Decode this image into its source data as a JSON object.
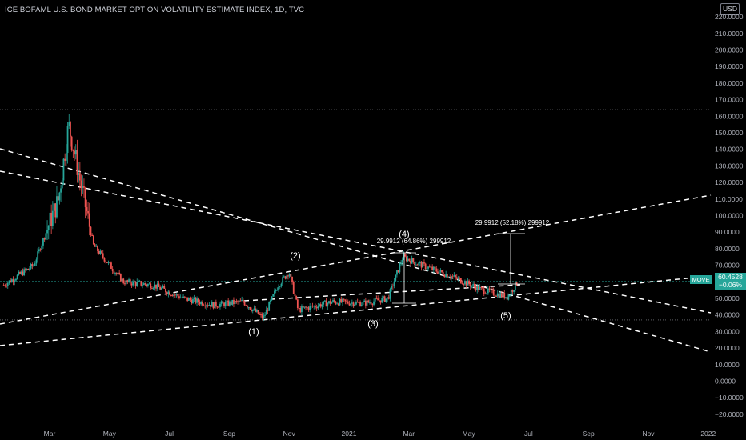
{
  "title": "ICE BOFAML U.S. BOND MARKET OPTION VOLATILITY ESTIMATE INDEX, 1D, TVC",
  "currency": "USD",
  "symbol_tag": "MOVE",
  "last_price": "60.4528",
  "change_pct": "−0.06%",
  "colors": {
    "up": "#26a69a",
    "down": "#ef5350",
    "background": "#000000",
    "tag": "#26a69a"
  },
  "chart_data": {
    "type": "candlestick",
    "title": "ICE BOFAML U.S. BOND MARKET OPTION VOLATILITY ESTIMATE INDEX, 1D, TVC",
    "y_axis_side": "right",
    "ylim": [
      -25,
      225
    ],
    "y_ticks": [
      "220.0000",
      "210.0000",
      "200.0000",
      "190.0000",
      "180.0000",
      "170.0000",
      "160.0000",
      "150.0000",
      "140.0000",
      "130.0000",
      "120.0000",
      "110.0000",
      "100.0000",
      "90.0000",
      "80.0000",
      "70.0000",
      "60.0000",
      "50.0000",
      "40.0000",
      "30.0000",
      "20.0000",
      "10.0000",
      "0.0000",
      "−10.0000",
      "−20.0000"
    ],
    "x_ticks": [
      "Mar",
      "May",
      "Jul",
      "Sep",
      "Nov",
      "2021",
      "Mar",
      "May",
      "Jul",
      "Sep",
      "Nov",
      "2022"
    ],
    "period": "1D",
    "price_series": [
      {
        "date": "2020-01",
        "value": 58
      },
      {
        "date": "2020-02",
        "value": 70
      },
      {
        "date": "2020-03-10",
        "value": 110
      },
      {
        "date": "2020-03-20",
        "value": 155
      },
      {
        "date": "2020-04",
        "value": 82
      },
      {
        "date": "2020-05",
        "value": 60
      },
      {
        "date": "2020-06",
        "value": 58
      },
      {
        "date": "2020-07",
        "value": 50
      },
      {
        "date": "2020-08",
        "value": 46
      },
      {
        "date": "2020-09",
        "value": 48
      },
      {
        "date": "2020-10-05",
        "value": 38
      },
      {
        "date": "2020-10-20",
        "value": 58
      },
      {
        "date": "2020-11-01",
        "value": 66
      },
      {
        "date": "2020-11-10",
        "value": 43
      },
      {
        "date": "2020-12",
        "value": 48
      },
      {
        "date": "2021-01",
        "value": 47
      },
      {
        "date": "2021-02-10",
        "value": 50
      },
      {
        "date": "2021-02-25",
        "value": 75
      },
      {
        "date": "2021-03-10",
        "value": 71
      },
      {
        "date": "2021-04",
        "value": 63
      },
      {
        "date": "2021-05",
        "value": 55
      },
      {
        "date": "2021-06-10",
        "value": 51
      },
      {
        "date": "2021-06-20",
        "value": 60
      }
    ],
    "annotations": {
      "wave_labels": [
        "(1)",
        "(2)",
        "(3)",
        "(4)",
        "(5)"
      ],
      "measurements": [
        "29.9912 (64.86%) 299912",
        "29.9912 (52.18%) 299912"
      ],
      "horizontal_levels": [
        164,
        60.45,
        37
      ],
      "trendlines": "dashed, white"
    }
  }
}
